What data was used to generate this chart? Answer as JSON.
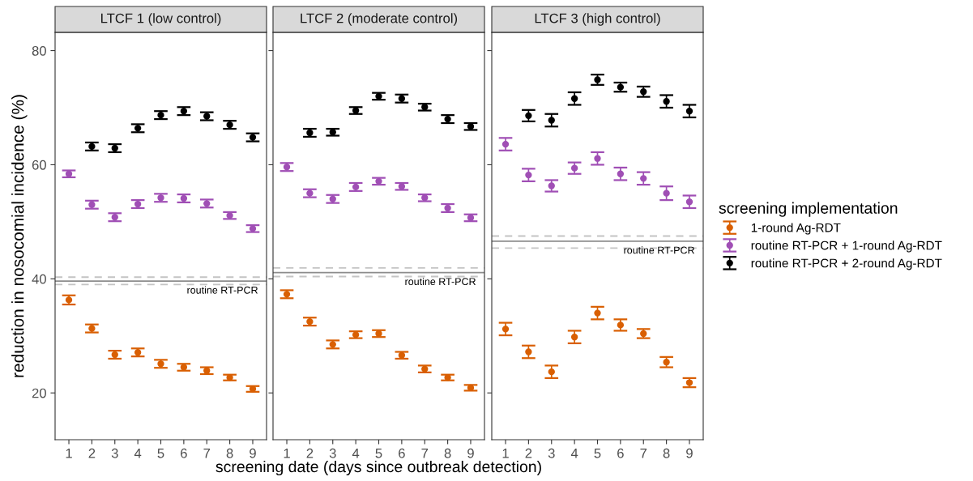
{
  "chart_data": [
    {
      "type": "scatter",
      "title": "LTCF 1 (low control)",
      "ylabel": "reduction in nosocomial incidence (%)",
      "x": [
        1,
        2,
        3,
        4,
        5,
        6,
        7,
        8,
        9
      ],
      "xlim": [
        0.4,
        9.6
      ],
      "xticks": [
        1,
        2,
        3,
        4,
        5,
        6,
        7,
        8,
        9
      ],
      "ylim": [
        11.8,
        83.2
      ],
      "yticks": [
        20,
        40,
        60,
        80
      ],
      "marker": "circle",
      "grid": false,
      "legend": false,
      "series": [
        {
          "color": "#d95f02",
          "values": [
            36.3,
            31.3,
            26.7,
            27.1,
            25.1,
            24.5,
            23.9,
            22.7,
            20.7
          ],
          "errors": [
            0.8,
            0.7,
            0.7,
            0.7,
            0.7,
            0.6,
            0.6,
            0.5,
            0.5
          ]
        },
        {
          "color": "#a04fb5",
          "values": [
            58.4,
            53.0,
            50.8,
            53.1,
            54.2,
            54.1,
            53.2,
            51.1,
            48.8
          ],
          "errors": [
            0.6,
            0.7,
            0.7,
            0.7,
            0.7,
            0.7,
            0.7,
            0.6,
            0.6
          ]
        },
        {
          "color": "#000000",
          "x": [
            2,
            3,
            4,
            5,
            6,
            7,
            8,
            9
          ],
          "values": [
            63.2,
            62.9,
            66.4,
            68.7,
            69.4,
            68.5,
            67.0,
            64.8
          ],
          "errors": [
            0.7,
            0.7,
            0.7,
            0.7,
            0.7,
            0.7,
            0.7,
            0.7
          ]
        }
      ],
      "ref_lines": [
        {
          "axis": "y",
          "value": 39.6,
          "label": "routine RT-PCR",
          "color": "#8c8c8c",
          "line_style": "solid"
        },
        {
          "axis": "y",
          "value": 40.3,
          "color": "#c4c4c4",
          "line_style": "dashed"
        },
        {
          "axis": "y",
          "value": 39.0,
          "color": "#c4c4c4",
          "line_style": "dashed"
        }
      ]
    },
    {
      "type": "scatter",
      "title": "LTCF 2 (moderate control)",
      "xlabel": "screening date (days since outbreak detection)",
      "x": [
        1,
        2,
        3,
        4,
        5,
        6,
        7,
        8,
        9
      ],
      "xlim": [
        0.4,
        9.6
      ],
      "xticks": [
        1,
        2,
        3,
        4,
        5,
        6,
        7,
        8,
        9
      ],
      "ylim": [
        11.8,
        83.2
      ],
      "yticks": [
        20,
        40,
        60,
        80
      ],
      "tick_labels": "x",
      "marker": "circle",
      "grid": false,
      "legend": false,
      "series": [
        {
          "color": "#d95f02",
          "values": [
            37.3,
            32.5,
            28.5,
            30.2,
            30.4,
            26.6,
            24.2,
            22.7,
            20.9
          ],
          "errors": [
            0.7,
            0.7,
            0.7,
            0.6,
            0.6,
            0.6,
            0.6,
            0.5,
            0.5
          ]
        },
        {
          "color": "#a04fb5",
          "values": [
            59.6,
            55.0,
            54.0,
            56.1,
            57.1,
            56.2,
            54.2,
            52.4,
            50.7
          ],
          "errors": [
            0.7,
            0.7,
            0.7,
            0.7,
            0.6,
            0.6,
            0.6,
            0.7,
            0.6
          ]
        },
        {
          "color": "#000000",
          "x": [
            2,
            3,
            4,
            5,
            6,
            7,
            8,
            9
          ],
          "values": [
            65.6,
            65.7,
            69.5,
            72.0,
            71.6,
            70.1,
            68.0,
            66.7
          ],
          "errors": [
            0.7,
            0.6,
            0.6,
            0.6,
            0.7,
            0.6,
            0.7,
            0.6
          ]
        }
      ],
      "ref_lines": [
        {
          "axis": "y",
          "value": 41.1,
          "label": "routine RT-PCR",
          "color": "#8c8c8c",
          "line_style": "solid"
        },
        {
          "axis": "y",
          "value": 41.9,
          "color": "#c4c4c4",
          "line_style": "dashed"
        },
        {
          "axis": "y",
          "value": 40.4,
          "color": "#c4c4c4",
          "line_style": "dashed"
        }
      ]
    },
    {
      "type": "scatter",
      "title": "LTCF 3 (high control)",
      "legend_title": "screening implementation",
      "x": [
        1,
        2,
        3,
        4,
        5,
        6,
        7,
        8,
        9
      ],
      "xlim": [
        0.4,
        9.6
      ],
      "xticks": [
        1,
        2,
        3,
        4,
        5,
        6,
        7,
        8,
        9
      ],
      "ylim": [
        11.8,
        83.2
      ],
      "yticks": [
        20,
        40,
        60,
        80
      ],
      "tick_labels": "x",
      "marker": "circle",
      "grid": false,
      "legend": "right",
      "series": [
        {
          "name": "1-round Ag-RDT",
          "color": "#d95f02",
          "values": [
            31.2,
            27.2,
            23.7,
            29.8,
            34.0,
            31.9,
            30.4,
            25.4,
            21.8
          ],
          "errors": [
            1.1,
            1.1,
            1.1,
            1.1,
            1.1,
            1.0,
            0.8,
            0.9,
            0.8
          ]
        },
        {
          "name": "routine RT-PCR + 1-round Ag-RDT",
          "color": "#a04fb5",
          "values": [
            63.6,
            58.2,
            56.3,
            59.4,
            61.1,
            58.4,
            57.6,
            55.0,
            53.5
          ],
          "errors": [
            1.1,
            1.1,
            1.0,
            1.0,
            1.1,
            1.1,
            1.1,
            1.2,
            1.1
          ]
        },
        {
          "name": "routine RT-PCR + 2-round Ag-RDT",
          "color": "#000000",
          "x": [
            2,
            3,
            4,
            5,
            6,
            7,
            8,
            9
          ],
          "values": [
            68.6,
            67.8,
            71.6,
            74.9,
            73.6,
            72.8,
            71.1,
            69.4
          ],
          "errors": [
            1.0,
            1.1,
            1.1,
            0.9,
            0.8,
            0.9,
            1.1,
            1.1
          ]
        }
      ],
      "ref_lines": [
        {
          "axis": "y",
          "value": 46.6,
          "label": "routine RT-PCR",
          "color": "#8c8c8c",
          "line_style": "solid"
        },
        {
          "axis": "y",
          "value": 47.5,
          "color": "#c4c4c4",
          "line_style": "dashed"
        },
        {
          "axis": "y",
          "value": 45.4,
          "color": "#c4c4c4",
          "line_style": "dashed"
        }
      ]
    }
  ]
}
